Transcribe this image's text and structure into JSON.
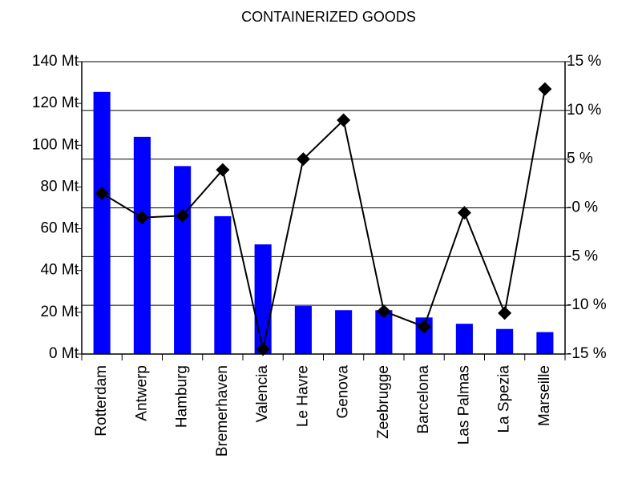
{
  "chart_data": {
    "type": "combo",
    "title": "CONTAINERIZED GOODS",
    "categories": [
      "Rotterdam",
      "Antwerp",
      "Hamburg",
      "Bremerhaven",
      "Valencia",
      "Le Havre",
      "Genova",
      "Zeebrugge",
      "Barcelona",
      "Las Palmas",
      "La Spezia",
      "Marseille"
    ],
    "series": [
      {
        "type": "bar",
        "color": "#0000ff",
        "axis": "y",
        "values": [
          125.5,
          104,
          90,
          66,
          52.5,
          23,
          21,
          21,
          17.5,
          14.5,
          12,
          10.5
        ]
      },
      {
        "type": "line",
        "color": "#000000",
        "axis": "y2",
        "values": [
          1.5,
          -1,
          -0.8,
          3.9,
          -14.5,
          5,
          9,
          -10.6,
          -12.2,
          -0.5,
          -10.8,
          12.2
        ]
      }
    ],
    "ylim": [
      0,
      140
    ],
    "yticks": [
      {
        "value": 0,
        "label": "0 Mt"
      },
      {
        "value": 20,
        "label": "20 Mt"
      },
      {
        "value": 40,
        "label": "40 Mt"
      },
      {
        "value": 60,
        "label": "60 Mt"
      },
      {
        "value": 80,
        "label": "80 Mt"
      },
      {
        "value": 100,
        "label": "100 Mt"
      },
      {
        "value": 120,
        "label": "120 Mt"
      },
      {
        "value": 140,
        "label": "140 Mt"
      }
    ],
    "y2lim": [
      -15,
      15
    ],
    "y2ticks": [
      {
        "value": -15,
        "label": "-15 %"
      },
      {
        "value": -10,
        "label": "-10 %"
      },
      {
        "value": -5,
        "label": "-5 %"
      },
      {
        "value": 0,
        "label": "-0 %"
      },
      {
        "value": 5,
        "label": "5 %"
      },
      {
        "value": 10,
        "label": "10 %"
      },
      {
        "value": 15,
        "label": "15 %"
      }
    ],
    "grid": "y2"
  }
}
